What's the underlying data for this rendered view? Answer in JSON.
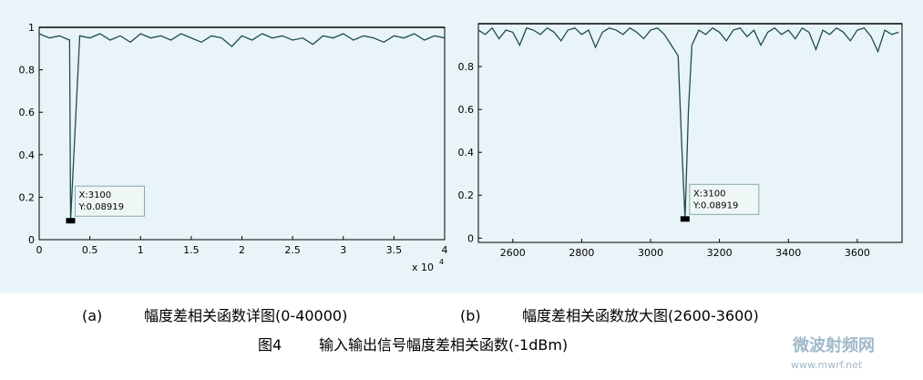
{
  "chart_data": [
    {
      "type": "line",
      "xlim": [
        0,
        40000
      ],
      "ylim": [
        0,
        1
      ],
      "xticks": [
        {
          "value": 0,
          "label": "0"
        },
        {
          "value": 5000,
          "label": "0.5"
        },
        {
          "value": 10000,
          "label": "1"
        },
        {
          "value": 15000,
          "label": "1.5"
        },
        {
          "value": 20000,
          "label": "2"
        },
        {
          "value": 25000,
          "label": "2.5"
        },
        {
          "value": 30000,
          "label": "3"
        },
        {
          "value": 35000,
          "label": "3.5"
        },
        {
          "value": 40000,
          "label": "4"
        }
      ],
      "yticks": [
        0,
        0.2,
        0.4,
        0.6,
        0.8,
        1
      ],
      "x_multiplier": "x 10",
      "x_exponent": "4",
      "datatip": [
        "X:3100",
        "Y:0.08919"
      ],
      "series": [
        {
          "color": "#1e4d4d",
          "x": [
            0,
            1000,
            2000,
            3000,
            3100,
            4000,
            5000,
            6000,
            7000,
            8000,
            9000,
            10000,
            11000,
            12000,
            13000,
            14000,
            15000,
            16000,
            17000,
            18000,
            19000,
            20000,
            21000,
            22000,
            23000,
            24000,
            25000,
            26000,
            27000,
            28000,
            29000,
            30000,
            31000,
            32000,
            33000,
            34000,
            35000,
            36000,
            37000,
            38000,
            39000,
            40000
          ],
          "values": [
            0.97,
            0.95,
            0.96,
            0.94,
            0.08919,
            0.96,
            0.95,
            0.97,
            0.94,
            0.96,
            0.93,
            0.97,
            0.95,
            0.96,
            0.94,
            0.97,
            0.95,
            0.93,
            0.96,
            0.95,
            0.91,
            0.96,
            0.94,
            0.97,
            0.95,
            0.96,
            0.94,
            0.95,
            0.92,
            0.96,
            0.95,
            0.97,
            0.94,
            0.96,
            0.95,
            0.93,
            0.96,
            0.95,
            0.97,
            0.94,
            0.96,
            0.95
          ]
        }
      ]
    },
    {
      "type": "line",
      "xlim": [
        2500,
        3730
      ],
      "ylim": [
        -0.02,
        1
      ],
      "xticks": [
        2600,
        2800,
        3000,
        3200,
        3400,
        3600
      ],
      "yticks": [
        0,
        0.2,
        0.4,
        0.6,
        0.8
      ],
      "datatip": [
        "X:3100",
        "Y:0.08919"
      ],
      "series": [
        {
          "color": "#1e4d4d",
          "x": [
            2500,
            2520,
            2540,
            2560,
            2580,
            2600,
            2620,
            2640,
            2660,
            2680,
            2700,
            2720,
            2740,
            2760,
            2780,
            2800,
            2820,
            2840,
            2860,
            2880,
            2900,
            2920,
            2940,
            2960,
            2980,
            3000,
            3020,
            3040,
            3060,
            3080,
            3090,
            3100,
            3110,
            3120,
            3140,
            3160,
            3180,
            3200,
            3220,
            3240,
            3260,
            3280,
            3300,
            3320,
            3340,
            3360,
            3380,
            3400,
            3420,
            3440,
            3460,
            3480,
            3500,
            3520,
            3540,
            3560,
            3580,
            3600,
            3620,
            3640,
            3660,
            3680,
            3700,
            3720
          ],
          "values": [
            0.97,
            0.95,
            0.98,
            0.93,
            0.97,
            0.96,
            0.9,
            0.98,
            0.97,
            0.95,
            0.98,
            0.96,
            0.92,
            0.97,
            0.98,
            0.95,
            0.97,
            0.89,
            0.96,
            0.98,
            0.97,
            0.95,
            0.98,
            0.96,
            0.93,
            0.97,
            0.98,
            0.95,
            0.9,
            0.85,
            0.45,
            0.08919,
            0.6,
            0.9,
            0.97,
            0.95,
            0.98,
            0.96,
            0.92,
            0.97,
            0.98,
            0.94,
            0.97,
            0.9,
            0.96,
            0.98,
            0.95,
            0.97,
            0.93,
            0.98,
            0.96,
            0.88,
            0.97,
            0.95,
            0.98,
            0.96,
            0.92,
            0.97,
            0.98,
            0.94,
            0.87,
            0.97,
            0.95,
            0.96
          ]
        }
      ]
    }
  ],
  "captions": {
    "a_label": "(a)",
    "a_text": "幅度差相关函数详图(0-40000)",
    "b_label": "(b)",
    "b_text": "幅度差相关函数放大图(2600-3600)",
    "fig_label": "图4",
    "fig_text": "输入输出信号幅度差相关函数(-1dBm)"
  },
  "watermark": {
    "name": "微波射频网",
    "url": "www.mwrf.net"
  }
}
